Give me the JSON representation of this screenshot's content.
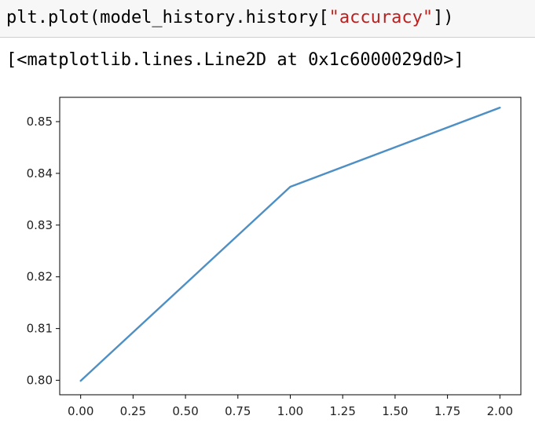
{
  "cell": {
    "code_prefix": "plt.plot(model_history.history[",
    "code_string": "\"accuracy\"",
    "code_suffix": "])",
    "output": "[<matplotlib.lines.Line2D at 0x1c6000029d0>]"
  },
  "colors": {
    "line": "#4e8fc4",
    "string": "#ba2121"
  },
  "chart_data": {
    "type": "line",
    "title": "",
    "xlabel": "",
    "ylabel": "",
    "x": [
      0,
      1,
      2
    ],
    "series": [
      {
        "name": "accuracy",
        "values": [
          0.7999,
          0.8374,
          0.8527
        ]
      }
    ],
    "xlim": [
      -0.1,
      2.1
    ],
    "ylim": [
      0.7972,
      0.8547
    ],
    "xticks": [
      0.0,
      0.25,
      0.5,
      0.75,
      1.0,
      1.25,
      1.5,
      1.75,
      2.0
    ],
    "xtick_labels": [
      "0.00",
      "0.25",
      "0.50",
      "0.75",
      "1.00",
      "1.25",
      "1.50",
      "1.75",
      "2.00"
    ],
    "yticks": [
      0.8,
      0.81,
      0.82,
      0.83,
      0.84,
      0.85
    ],
    "ytick_labels": [
      "0.80",
      "0.81",
      "0.82",
      "0.83",
      "0.84",
      "0.85"
    ],
    "grid": false
  }
}
